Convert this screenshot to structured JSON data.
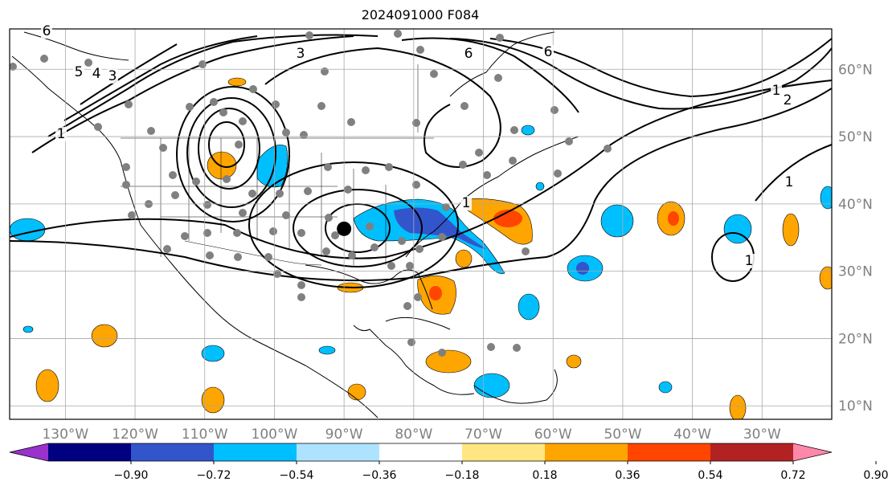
{
  "title": "2024091000 F084",
  "map": {
    "projection": "PlateCarree",
    "lon_range": [
      -138,
      -20
    ],
    "lat_range": [
      8,
      66
    ],
    "lat_ticks": [
      {
        "value": 10,
        "label": "10°N"
      },
      {
        "value": 20,
        "label": "20°N"
      },
      {
        "value": 30,
        "label": "30°N"
      },
      {
        "value": 40,
        "label": "40°N"
      },
      {
        "value": 50,
        "label": "50°N"
      },
      {
        "value": 60,
        "label": "60°N"
      }
    ],
    "lon_ticks": [
      {
        "value": -130,
        "label": "130°W"
      },
      {
        "value": -120,
        "label": "120°W"
      },
      {
        "value": -110,
        "label": "110°W"
      },
      {
        "value": -100,
        "label": "100°W"
      },
      {
        "value": -90,
        "label": "90°W"
      },
      {
        "value": -80,
        "label": "80°W"
      },
      {
        "value": -70,
        "label": "70°W"
      },
      {
        "value": -60,
        "label": "60°W"
      },
      {
        "value": -50,
        "label": "50°W"
      },
      {
        "value": -40,
        "label": "40°W"
      },
      {
        "value": -30,
        "label": "30°W"
      }
    ],
    "center_marker": {
      "lon": -90,
      "lat": 36.3
    },
    "contour_labels": [
      "3",
      "6",
      "5",
      "4",
      "3",
      "6",
      "6",
      "1",
      "2",
      "1",
      "1",
      "1",
      "1"
    ]
  },
  "colorbar": {
    "colors": [
      "#9933cc",
      "#000080",
      "#3355cc",
      "#00bfff",
      "#aee3ff",
      "#ffffff",
      "#ffe680",
      "#ffa500",
      "#ff4500",
      "#b22222",
      "#ff88aa"
    ],
    "tick_labels": [
      "−0.90",
      "−0.72",
      "−0.54",
      "−0.36",
      "−0.18",
      "0.18",
      "0.36",
      "0.54",
      "0.72",
      "0.90"
    ]
  }
}
